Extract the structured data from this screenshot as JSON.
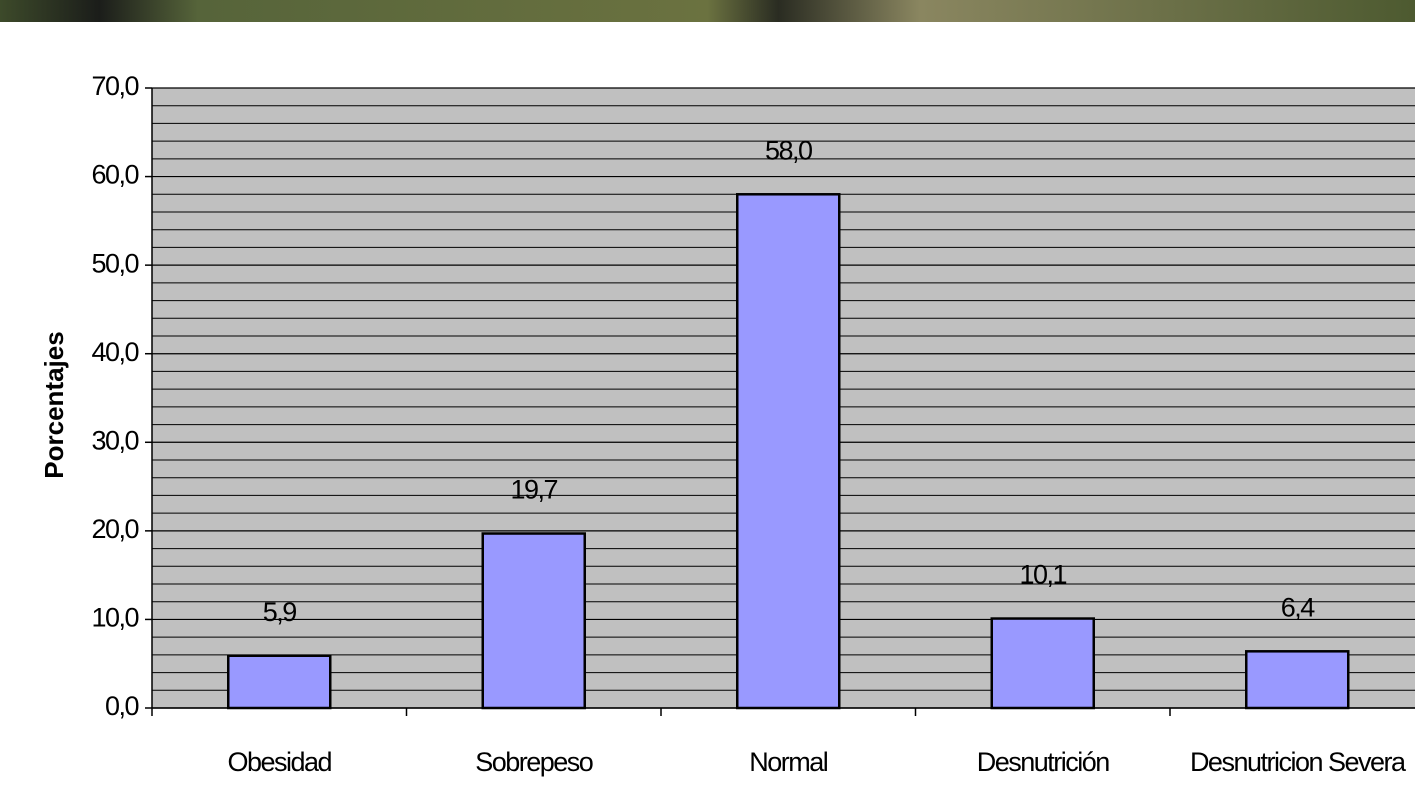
{
  "chart_data": {
    "type": "bar",
    "y_label": "Porcentajes",
    "categories": [
      "Obesidad",
      "Sobrepeso",
      "Normal",
      "Desnutrición",
      "Desnutricion Severa"
    ],
    "values": [
      5.9,
      19.7,
      58.0,
      10.1,
      6.4
    ],
    "value_labels": [
      "5,9",
      "19,7",
      "58,0",
      "10,1",
      "6,4"
    ],
    "color": "#9999ff",
    "ylim": [
      0,
      70
    ],
    "yticks": [
      {
        "value": 0,
        "label": "0,0"
      },
      {
        "value": 10,
        "label": "10,0"
      },
      {
        "value": 20,
        "label": "20,0"
      },
      {
        "value": 30,
        "label": "30,0"
      },
      {
        "value": 40,
        "label": "40,0"
      },
      {
        "value": 50,
        "label": "50,0"
      },
      {
        "value": 60,
        "label": "60,0"
      },
      {
        "value": 70,
        "label": "70,0"
      }
    ],
    "minor_yticks": [
      2,
      4,
      6,
      8,
      12,
      14,
      16,
      18,
      22,
      24,
      26,
      28,
      32,
      34,
      36,
      38,
      42,
      44,
      46,
      48,
      52,
      54,
      56,
      58,
      62,
      64,
      66,
      68
    ],
    "grid": true
  }
}
